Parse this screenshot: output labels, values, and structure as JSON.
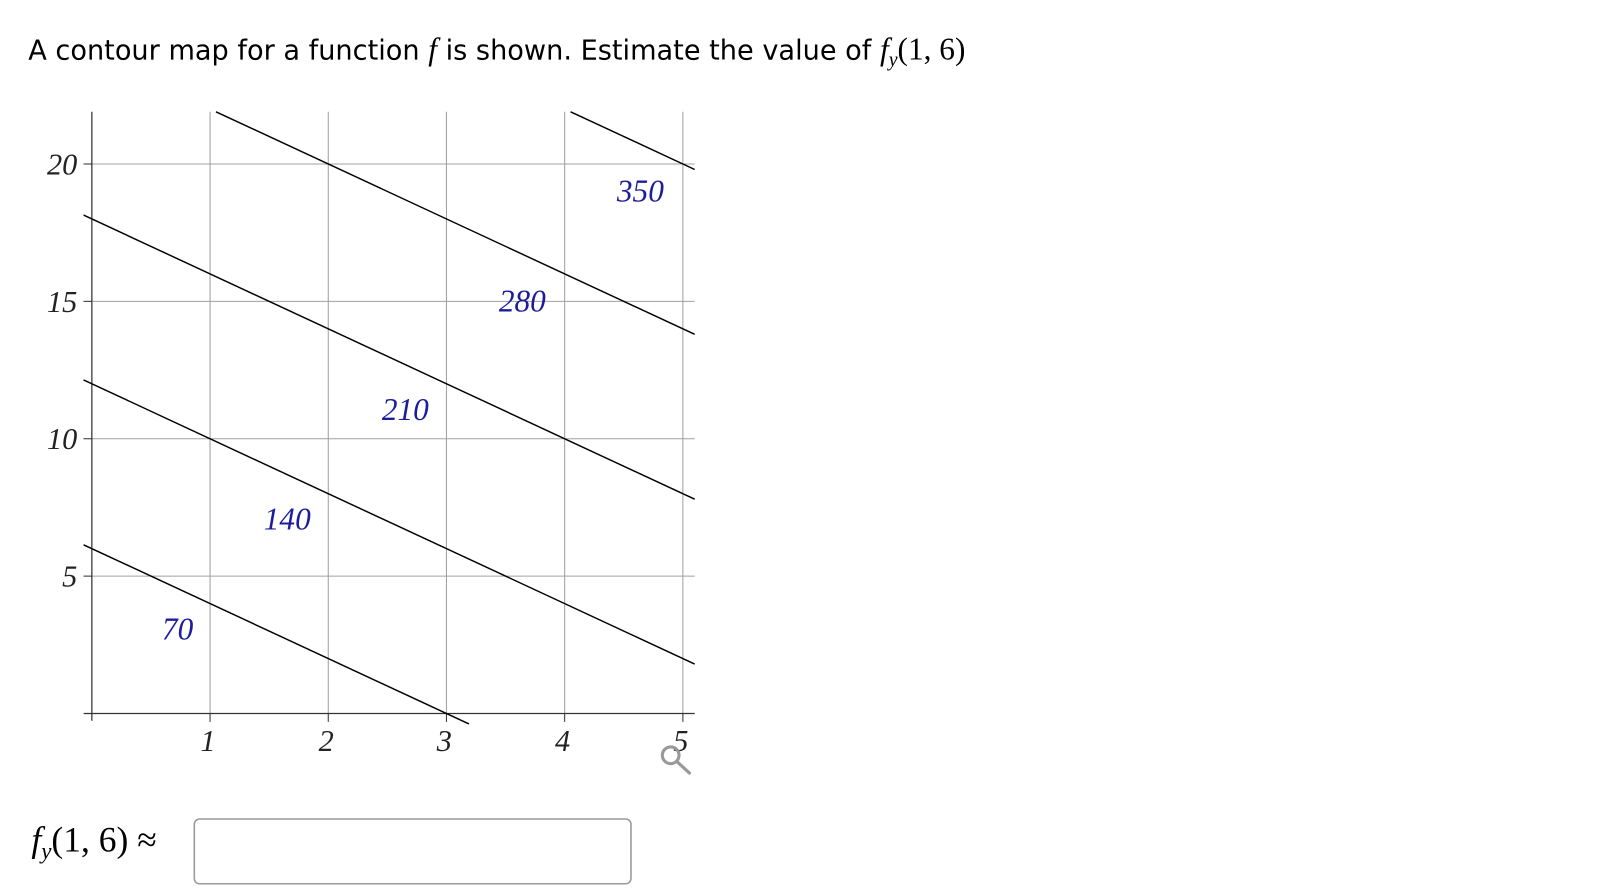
{
  "question": {
    "before": "A contour map for a function",
    "func": "f",
    "after": "is shown. Estimate the value of",
    "expr": {
      "name": "f",
      "sub": "y",
      "args": "(1, 6)"
    }
  },
  "chart_data": {
    "type": "contour",
    "xlim": [
      -0.07,
      5.1
    ],
    "ylim": [
      0,
      21.9
    ],
    "xticks": [
      1,
      2,
      3,
      4,
      5
    ],
    "yticks": [
      5,
      10,
      15,
      20
    ],
    "grid": true,
    "line_color": "#000000",
    "label_color": "#1c1c9c",
    "series": [
      {
        "name": "70",
        "x": [
          -0.07,
          3.19
        ],
        "y": [
          6.14,
          -0.38
        ]
      },
      {
        "name": "140",
        "x": [
          -0.07,
          5.1
        ],
        "y": [
          12.14,
          1.8
        ]
      },
      {
        "name": "210",
        "x": [
          -0.07,
          5.1
        ],
        "y": [
          18.14,
          7.8
        ]
      },
      {
        "name": "280",
        "x": [
          1.05,
          5.1
        ],
        "y": [
          21.9,
          13.8
        ]
      },
      {
        "name": "350",
        "x": [
          4.05,
          5.1
        ],
        "y": [
          21.9,
          19.8
        ]
      }
    ]
  },
  "answer": {
    "name": "f",
    "sub": "y",
    "args": "(1, 6)",
    "relation": "≈"
  }
}
